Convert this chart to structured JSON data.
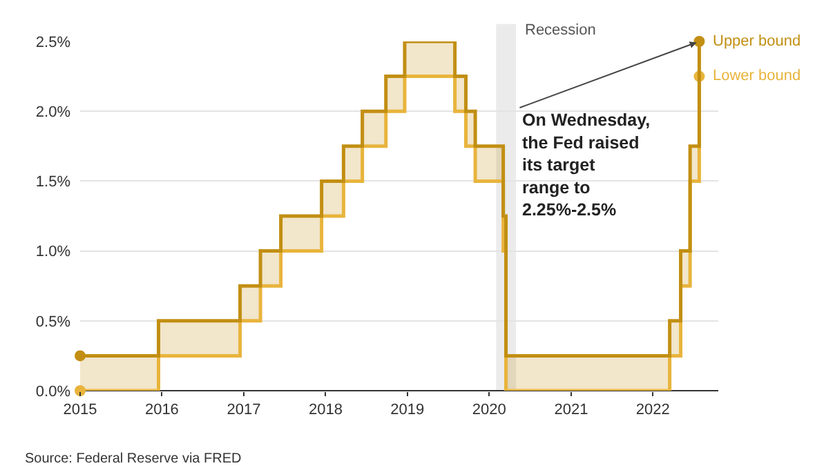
{
  "chart_data": {
    "type": "step",
    "x": [
      "2015-01-01",
      "2015-12-17",
      "2016-12-15",
      "2017-03-16",
      "2017-06-15",
      "2017-12-14",
      "2018-03-22",
      "2018-06-14",
      "2018-09-27",
      "2018-12-20",
      "2019-08-01",
      "2019-09-19",
      "2019-10-31",
      "2020-03-04",
      "2020-03-16",
      "2022-03-17",
      "2022-05-05",
      "2022-06-16",
      "2022-07-27"
    ],
    "series": [
      {
        "name": "Upper bound",
        "color": "#c28f13",
        "values": [
          0.25,
          0.5,
          0.75,
          1.0,
          1.25,
          1.5,
          1.75,
          2.0,
          2.25,
          2.5,
          2.25,
          2.0,
          1.75,
          1.25,
          0.25,
          0.5,
          1.0,
          1.75,
          2.5
        ],
        "lower": [
          0,
          0.25,
          0.5,
          0.75,
          1.0,
          1.25,
          1.5,
          1.75,
          2.0,
          2.25,
          2.0,
          1.75,
          1.5,
          1.0,
          0,
          0.25,
          0.75,
          1.5,
          2.25
        ],
        "upper": [
          0.25,
          0.5,
          0.75,
          1.0,
          1.25,
          1.5,
          1.75,
          2.0,
          2.25,
          2.5,
          2.25,
          2.0,
          1.75,
          1.25,
          0.25,
          0.5,
          1.0,
          1.75,
          2.5
        ]
      },
      {
        "name": "Lower bound",
        "color": "#e8b43c",
        "values": [
          0,
          0.25,
          0.5,
          0.75,
          1.0,
          1.25,
          1.5,
          1.75,
          2.0,
          2.25,
          2.0,
          1.75,
          1.5,
          1.0,
          0,
          0.25,
          0.75,
          1.5,
          2.25
        ]
      }
    ],
    "xlim": [
      "2015-01-01",
      "2022-10-20"
    ],
    "xticks": [
      {
        "value": "2015-01-01",
        "label": "2015"
      },
      {
        "value": "2016-01-01",
        "label": "2016"
      },
      {
        "value": "2017-01-01",
        "label": "2017"
      },
      {
        "value": "2018-01-01",
        "label": "2018"
      },
      {
        "value": "2019-01-01",
        "label": "2019"
      },
      {
        "value": "2020-01-01",
        "label": "2020"
      },
      {
        "value": "2021-01-01",
        "label": "2021"
      },
      {
        "value": "2022-01-01",
        "label": "2022"
      }
    ],
    "ylim": [
      0,
      2.5
    ],
    "yticks": [
      {
        "value": 0,
        "label": "0.0%"
      },
      {
        "value": 0.5,
        "label": "0.5%"
      },
      {
        "value": 1.0,
        "label": "1.0%"
      },
      {
        "value": 1.5,
        "label": "1.5%"
      },
      {
        "value": 2.0,
        "label": "2.0%"
      },
      {
        "value": 2.5,
        "label": "2.5%"
      }
    ],
    "bands": [
      {
        "axis": "x",
        "from": "2020-02-01",
        "to": "2020-04-30",
        "label": "Recession",
        "color": "#ebebeb"
      }
    ],
    "annotations": [
      {
        "text": "On Wednesday,\nthe Fed raised\nits target\nrange to\n2.25%-2.5%",
        "x": "2022-07-27",
        "y": 2.5
      },
      "Source: Federal Reserve via FRED"
    ],
    "grid": "y",
    "line_style": "solid",
    "legend": false
  }
}
